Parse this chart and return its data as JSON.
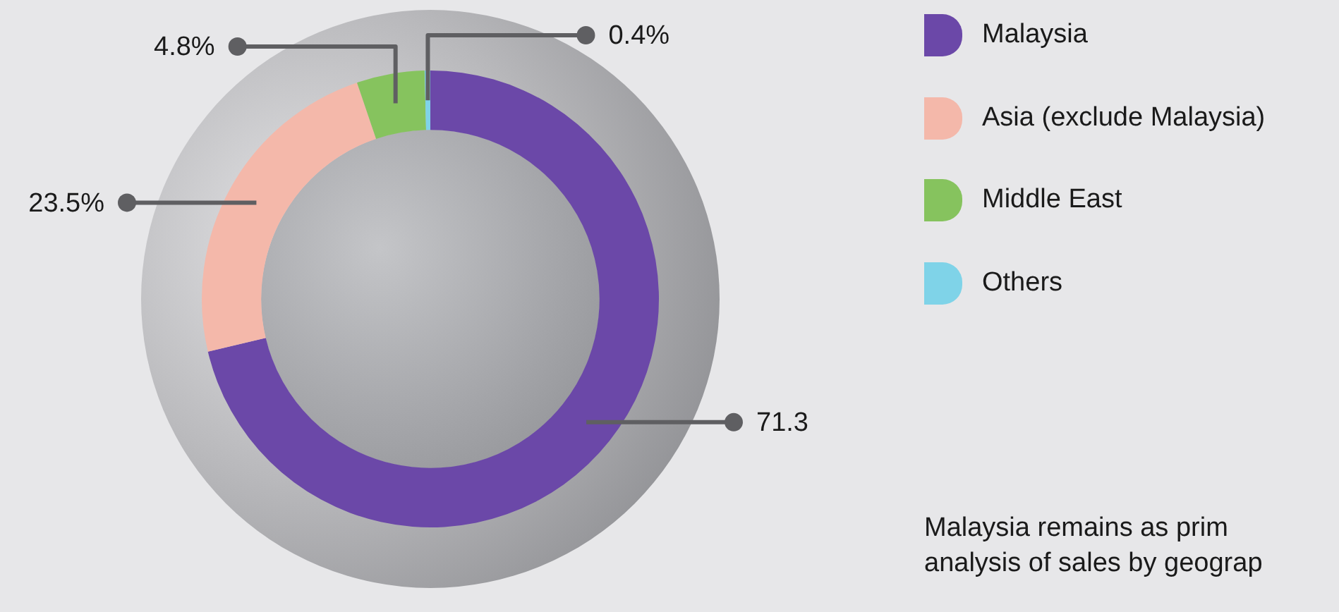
{
  "chart_data": {
    "type": "donut",
    "categories": [
      "Malaysia",
      "Asia (exclude Malaysia)",
      "Middle East",
      "Others"
    ],
    "values": [
      71.3,
      23.5,
      4.8,
      0.4
    ],
    "colors": [
      "#6b48a8",
      "#f4b8aa",
      "#86c35e",
      "#7fd3e8"
    ],
    "value_labels": [
      "71.3",
      "23.5%",
      "4.8%",
      "0.4%"
    ],
    "legend": "top right",
    "annotations": [
      "Malaysia remains as prim",
      "analysis of sales by geograp"
    ]
  }
}
